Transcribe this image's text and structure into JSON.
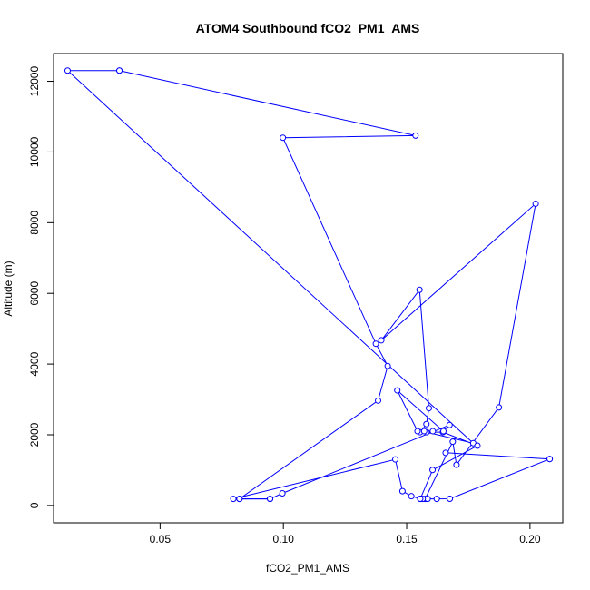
{
  "chart_data": {
    "type": "line",
    "title": "ATOM4 Southbound fCO2_PM1_AMS",
    "xlabel": "fCO2_PM1_AMS",
    "ylabel": "Altitude (m)",
    "xlim": [
      0.0068,
      0.2133
    ],
    "ylim": [
      -491,
      12784
    ],
    "xticks": [
      0.05,
      0.1,
      0.15,
      0.2
    ],
    "xtick_labels": [
      "0.05",
      "0.10",
      "0.15",
      "0.20"
    ],
    "yticks": [
      0,
      2000,
      4000,
      6000,
      8000,
      10000,
      12000
    ],
    "ytick_labels": [
      "0",
      "2000",
      "4000",
      "6000",
      "8000",
      "10000",
      "12000"
    ],
    "grid": false,
    "series": [
      {
        "color": "#0000ff",
        "marker": "open-circle",
        "points": [
          {
            "x": 0.0335,
            "y": 12302
          },
          {
            "x": 0.0125,
            "y": 12302
          },
          {
            "x": 0.177,
            "y": 1762
          },
          {
            "x": 0.1581,
            "y": 2073
          },
          {
            "x": 0.1647,
            "y": 2073
          },
          {
            "x": 0.1787,
            "y": 1692
          },
          {
            "x": 0.1605,
            "y": 1004
          },
          {
            "x": 0.1555,
            "y": 186
          },
          {
            "x": 0.1575,
            "y": 186
          },
          {
            "x": 0.1687,
            "y": 1804
          },
          {
            "x": 0.1702,
            "y": 1149
          },
          {
            "x": 0.1874,
            "y": 2774
          },
          {
            "x": 0.2023,
            "y": 8536
          },
          {
            "x": 0.1397,
            "y": 4672
          },
          {
            "x": 0.1552,
            "y": 6101
          },
          {
            "x": 0.159,
            "y": 2752
          },
          {
            "x": 0.158,
            "y": 2301
          },
          {
            "x": 0.1554,
            "y": 2072
          },
          {
            "x": 0.1571,
            "y": 2101
          },
          {
            "x": 0.1606,
            "y": 2101
          },
          {
            "x": 0.1544,
            "y": 2101
          },
          {
            "x": 0.1462,
            "y": 3256
          },
          {
            "x": 0.1649,
            "y": 2101
          },
          {
            "x": 0.1674,
            "y": 2276
          },
          {
            "x": 0.0996,
            "y": 344
          },
          {
            "x": 0.0946,
            "y": 186
          },
          {
            "x": 0.0822,
            "y": 186
          },
          {
            "x": 0.1384,
            "y": 2967
          },
          {
            "x": 0.1423,
            "y": 3946
          },
          {
            "x": 0.1375,
            "y": 4575
          },
          {
            "x": 0.0998,
            "y": 10404
          },
          {
            "x": 0.1536,
            "y": 10463
          },
          {
            "x": 0.0335,
            "y": 12302
          }
        ]
      },
      {
        "color": "#0000ff",
        "marker": "open-circle",
        "points": [
          {
            "x": 0.208,
            "y": 1314
          },
          {
            "x": 0.1675,
            "y": 189
          },
          {
            "x": 0.1622,
            "y": 186
          },
          {
            "x": 0.1585,
            "y": 186
          },
          {
            "x": 0.1565,
            "y": 186
          },
          {
            "x": 0.1555,
            "y": 190
          },
          {
            "x": 0.1519,
            "y": 262
          },
          {
            "x": 0.1483,
            "y": 404
          },
          {
            "x": 0.1454,
            "y": 1302
          },
          {
            "x": 0.0797,
            "y": 186
          },
          {
            "x": 0.0822,
            "y": 186
          },
          {
            "x": 0.0946,
            "y": 186
          }
        ]
      },
      {
        "color": "#0000ff",
        "marker": "open-circle",
        "points": [
          {
            "x": 0.1658,
            "y": 1490
          },
          {
            "x": 0.208,
            "y": 1314
          }
        ]
      }
    ]
  }
}
